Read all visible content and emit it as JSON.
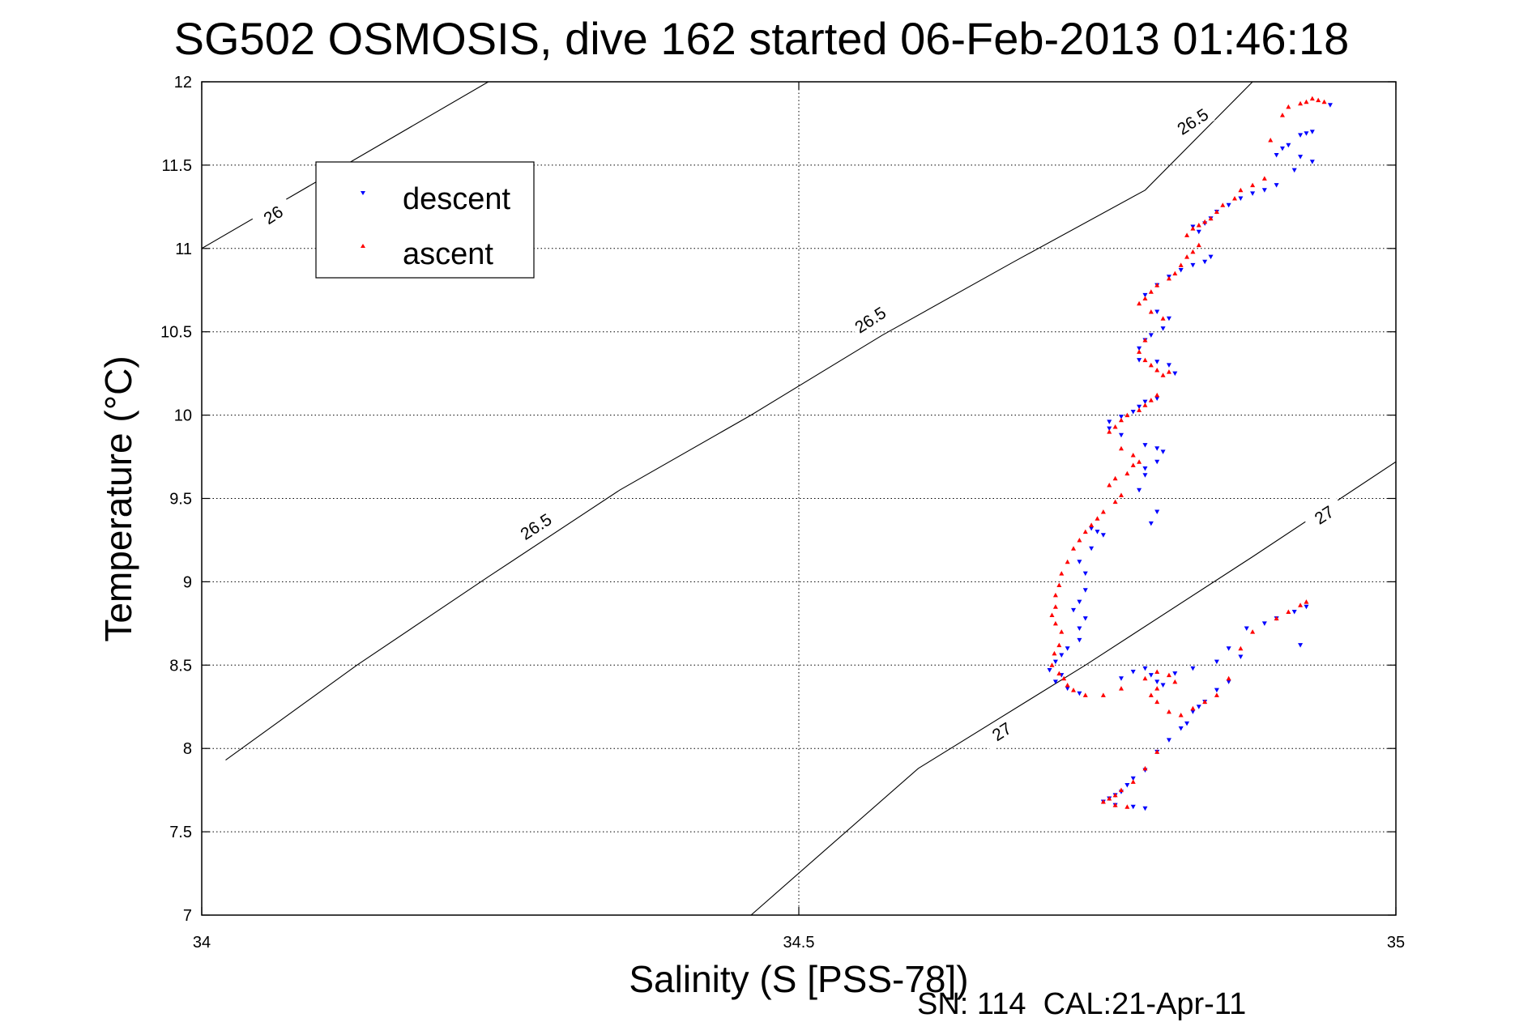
{
  "title": "SG502 OSMOSIS, dive 162 started 06-Feb-2013 01:46:18",
  "footer": "SN: 114  CAL:21-Apr-11",
  "chart_data": {
    "type": "scatter",
    "title": "SG502 OSMOSIS, dive 162 started 06-Feb-2013 01:46:18",
    "xlabel": "Salinity (S [PSS-78])",
    "ylabel": "Temperature (°C)",
    "xlim": [
      34,
      35
    ],
    "ylim": [
      7,
      12
    ],
    "xticks": [
      34,
      34.5,
      35
    ],
    "xtick_labels": [
      "34",
      "34.5",
      "35"
    ],
    "yticks": [
      7,
      7.5,
      8,
      8.5,
      9,
      9.5,
      10,
      10.5,
      11,
      11.5,
      12
    ],
    "ytick_labels": [
      "7",
      "7.5",
      "8",
      "8.5",
      "9",
      "9.5",
      "10",
      "10.5",
      "11",
      "11.5",
      "12"
    ],
    "grid": true,
    "legend_position": "top-left",
    "colors": {
      "descent": "#0000ff",
      "ascent": "#ff0000",
      "contour": "#000000"
    },
    "series": [
      {
        "name": "descent",
        "marker": "triangle-down",
        "color": "#0000ff",
        "points": [
          [
            34.945,
            11.86
          ],
          [
            34.93,
            11.7
          ],
          [
            34.925,
            11.69
          ],
          [
            34.92,
            11.68
          ],
          [
            34.91,
            11.62
          ],
          [
            34.905,
            11.6
          ],
          [
            34.9,
            11.56
          ],
          [
            34.92,
            11.55
          ],
          [
            34.93,
            11.52
          ],
          [
            34.915,
            11.47
          ],
          [
            34.9,
            11.38
          ],
          [
            34.89,
            11.35
          ],
          [
            34.88,
            11.33
          ],
          [
            34.87,
            11.3
          ],
          [
            34.86,
            11.26
          ],
          [
            34.85,
            11.22
          ],
          [
            34.845,
            11.18
          ],
          [
            34.84,
            11.15
          ],
          [
            34.83,
            11.13
          ],
          [
            34.835,
            11.1
          ],
          [
            34.845,
            10.95
          ],
          [
            34.84,
            10.92
          ],
          [
            34.83,
            10.9
          ],
          [
            34.82,
            10.87
          ],
          [
            34.81,
            10.83
          ],
          [
            34.8,
            10.78
          ],
          [
            34.79,
            10.72
          ],
          [
            34.8,
            10.62
          ],
          [
            34.81,
            10.58
          ],
          [
            34.805,
            10.52
          ],
          [
            34.795,
            10.48
          ],
          [
            34.79,
            10.45
          ],
          [
            34.785,
            10.4
          ],
          [
            34.785,
            10.33
          ],
          [
            34.8,
            10.32
          ],
          [
            34.81,
            10.3
          ],
          [
            34.815,
            10.25
          ],
          [
            34.8,
            10.1
          ],
          [
            34.79,
            10.08
          ],
          [
            34.785,
            10.05
          ],
          [
            34.78,
            10.02
          ],
          [
            34.77,
            9.99
          ],
          [
            34.76,
            9.96
          ],
          [
            34.76,
            9.92
          ],
          [
            34.77,
            9.88
          ],
          [
            34.79,
            9.82
          ],
          [
            34.8,
            9.8
          ],
          [
            34.805,
            9.78
          ],
          [
            34.8,
            9.72
          ],
          [
            34.79,
            9.68
          ],
          [
            34.79,
            9.64
          ],
          [
            34.785,
            9.55
          ],
          [
            34.8,
            9.42
          ],
          [
            34.795,
            9.35
          ],
          [
            34.745,
            9.32
          ],
          [
            34.75,
            9.3
          ],
          [
            34.755,
            9.28
          ],
          [
            34.745,
            9.2
          ],
          [
            34.735,
            9.12
          ],
          [
            34.74,
            9.05
          ],
          [
            34.74,
            8.95
          ],
          [
            34.735,
            8.88
          ],
          [
            34.73,
            8.83
          ],
          [
            34.74,
            8.78
          ],
          [
            34.735,
            8.72
          ],
          [
            34.735,
            8.65
          ],
          [
            34.725,
            8.6
          ],
          [
            34.72,
            8.56
          ],
          [
            34.715,
            8.52
          ],
          [
            34.71,
            8.47
          ],
          [
            34.72,
            8.44
          ],
          [
            34.715,
            8.4
          ],
          [
            34.725,
            8.36
          ],
          [
            34.735,
            8.33
          ],
          [
            34.77,
            8.42
          ],
          [
            34.78,
            8.46
          ],
          [
            34.79,
            8.48
          ],
          [
            34.795,
            8.44
          ],
          [
            34.8,
            8.4
          ],
          [
            34.805,
            8.38
          ],
          [
            34.815,
            8.45
          ],
          [
            34.83,
            8.48
          ],
          [
            34.85,
            8.52
          ],
          [
            34.86,
            8.6
          ],
          [
            34.875,
            8.72
          ],
          [
            34.89,
            8.75
          ],
          [
            34.9,
            8.78
          ],
          [
            34.915,
            8.82
          ],
          [
            34.925,
            8.85
          ],
          [
            34.92,
            8.62
          ],
          [
            34.87,
            8.55
          ],
          [
            34.86,
            8.4
          ],
          [
            34.85,
            8.35
          ],
          [
            34.84,
            8.28
          ],
          [
            34.835,
            8.25
          ],
          [
            34.83,
            8.22
          ],
          [
            34.825,
            8.15
          ],
          [
            34.82,
            8.12
          ],
          [
            34.81,
            8.05
          ],
          [
            34.8,
            7.98
          ],
          [
            34.79,
            7.87
          ],
          [
            34.78,
            7.82
          ],
          [
            34.775,
            7.78
          ],
          [
            34.77,
            7.74
          ],
          [
            34.765,
            7.72
          ],
          [
            34.76,
            7.7
          ],
          [
            34.755,
            7.68
          ],
          [
            34.765,
            7.66
          ],
          [
            34.78,
            7.65
          ],
          [
            34.79,
            7.64
          ]
        ]
      },
      {
        "name": "ascent",
        "marker": "triangle-up",
        "color": "#ff0000",
        "points": [
          [
            34.93,
            11.9
          ],
          [
            34.935,
            11.89
          ],
          [
            34.94,
            11.88
          ],
          [
            34.925,
            11.88
          ],
          [
            34.92,
            11.87
          ],
          [
            34.91,
            11.85
          ],
          [
            34.905,
            11.8
          ],
          [
            34.895,
            11.65
          ],
          [
            34.89,
            11.42
          ],
          [
            34.88,
            11.38
          ],
          [
            34.87,
            11.35
          ],
          [
            34.865,
            11.3
          ],
          [
            34.855,
            11.26
          ],
          [
            34.85,
            11.22
          ],
          [
            34.845,
            11.18
          ],
          [
            34.84,
            11.16
          ],
          [
            34.835,
            11.14
          ],
          [
            34.83,
            11.12
          ],
          [
            34.825,
            11.08
          ],
          [
            34.835,
            11.02
          ],
          [
            34.83,
            10.98
          ],
          [
            34.825,
            10.95
          ],
          [
            34.82,
            10.9
          ],
          [
            34.815,
            10.85
          ],
          [
            34.81,
            10.82
          ],
          [
            34.8,
            10.78
          ],
          [
            34.795,
            10.74
          ],
          [
            34.79,
            10.7
          ],
          [
            34.785,
            10.67
          ],
          [
            34.795,
            10.62
          ],
          [
            34.805,
            10.58
          ],
          [
            34.79,
            10.45
          ],
          [
            34.785,
            10.38
          ],
          [
            34.79,
            10.33
          ],
          [
            34.795,
            10.3
          ],
          [
            34.8,
            10.27
          ],
          [
            34.805,
            10.24
          ],
          [
            34.81,
            10.26
          ],
          [
            34.8,
            10.12
          ],
          [
            34.795,
            10.09
          ],
          [
            34.79,
            10.06
          ],
          [
            34.785,
            10.03
          ],
          [
            34.775,
            10.0
          ],
          [
            34.77,
            9.97
          ],
          [
            34.765,
            9.93
          ],
          [
            34.76,
            9.9
          ],
          [
            34.77,
            9.8
          ],
          [
            34.78,
            9.76
          ],
          [
            34.785,
            9.72
          ],
          [
            34.78,
            9.7
          ],
          [
            34.775,
            9.65
          ],
          [
            34.765,
            9.62
          ],
          [
            34.76,
            9.58
          ],
          [
            34.77,
            9.52
          ],
          [
            34.765,
            9.48
          ],
          [
            34.755,
            9.42
          ],
          [
            34.75,
            9.38
          ],
          [
            34.745,
            9.34
          ],
          [
            34.74,
            9.3
          ],
          [
            34.735,
            9.25
          ],
          [
            34.73,
            9.2
          ],
          [
            34.725,
            9.12
          ],
          [
            34.72,
            9.05
          ],
          [
            34.718,
            8.98
          ],
          [
            34.715,
            8.92
          ],
          [
            34.715,
            8.85
          ],
          [
            34.712,
            8.8
          ],
          [
            34.715,
            8.75
          ],
          [
            34.72,
            8.7
          ],
          [
            34.718,
            8.62
          ],
          [
            34.714,
            8.57
          ],
          [
            34.712,
            8.5
          ],
          [
            34.718,
            8.45
          ],
          [
            34.722,
            8.42
          ],
          [
            34.725,
            8.38
          ],
          [
            34.73,
            8.35
          ],
          [
            34.74,
            8.32
          ],
          [
            34.755,
            8.32
          ],
          [
            34.77,
            8.36
          ],
          [
            34.79,
            8.42
          ],
          [
            34.8,
            8.46
          ],
          [
            34.81,
            8.44
          ],
          [
            34.815,
            8.4
          ],
          [
            34.8,
            8.36
          ],
          [
            34.795,
            8.32
          ],
          [
            34.8,
            8.28
          ],
          [
            34.81,
            8.22
          ],
          [
            34.82,
            8.2
          ],
          [
            34.83,
            8.24
          ],
          [
            34.84,
            8.28
          ],
          [
            34.85,
            8.32
          ],
          [
            34.86,
            8.42
          ],
          [
            34.87,
            8.6
          ],
          [
            34.88,
            8.7
          ],
          [
            34.9,
            8.78
          ],
          [
            34.91,
            8.82
          ],
          [
            34.92,
            8.86
          ],
          [
            34.925,
            8.88
          ],
          [
            34.8,
            7.98
          ],
          [
            34.79,
            7.88
          ],
          [
            34.78,
            7.8
          ],
          [
            34.77,
            7.75
          ],
          [
            34.765,
            7.72
          ],
          [
            34.76,
            7.7
          ],
          [
            34.755,
            7.68
          ],
          [
            34.765,
            7.66
          ],
          [
            34.775,
            7.65
          ]
        ]
      }
    ],
    "contours": [
      {
        "label": "26",
        "x": [
          34.0,
          34.24
        ],
        "y": [
          11.0,
          12.0
        ]
      },
      {
        "label": "26.5",
        "x": [
          34.02,
          34.13,
          34.24,
          34.35,
          34.46,
          34.57,
          34.68,
          34.79,
          34.88
        ],
        "y": [
          7.93,
          8.5,
          9.03,
          9.55,
          10.0,
          10.48,
          10.92,
          11.35,
          12.0
        ]
      },
      {
        "label": "27",
        "x": [
          34.46,
          34.6,
          34.74,
          34.88,
          35.0
        ],
        "y": [
          7.0,
          7.88,
          8.5,
          9.15,
          9.72
        ]
      }
    ],
    "contour_labels": [
      {
        "text": "26",
        "x": 34.06,
        "y": 11.2
      },
      {
        "text": "26.5",
        "x": 34.28,
        "y": 9.33
      },
      {
        "text": "26.5",
        "x": 34.56,
        "y": 10.57
      },
      {
        "text": "26.5",
        "x": 34.83,
        "y": 11.76
      },
      {
        "text": "27",
        "x": 34.67,
        "y": 8.1
      },
      {
        "text": "27",
        "x": 34.94,
        "y": 9.4
      }
    ]
  }
}
